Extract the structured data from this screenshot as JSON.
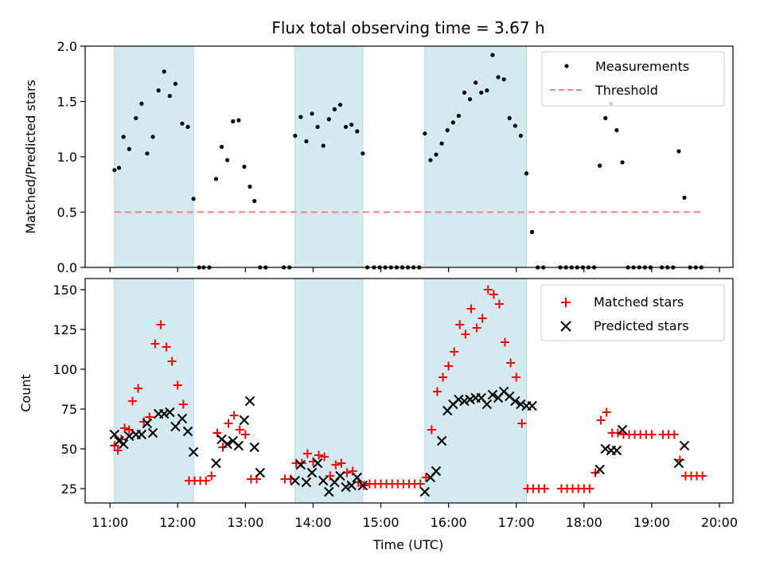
{
  "colors": {
    "band": "#d4eaf0",
    "band_edge": "#add8e6",
    "threshold": "#ff8080",
    "matched": "#ff0000",
    "predicted": "#000000",
    "measurement": "#000000"
  },
  "chart_data": [
    {
      "type": "scatter",
      "title": "Flux total observing time = 3.67 h",
      "xlabel": "",
      "ylabel": "Matched/Predicted stars",
      "xlim": [
        "10:38",
        "20:12"
      ],
      "ylim": [
        0,
        2.0
      ],
      "yticks": [
        0.0,
        0.5,
        1.0,
        1.5,
        2.0
      ],
      "ytick_labels": [
        "0.0",
        "0.5",
        "1.0",
        "1.5",
        "2.0"
      ],
      "grid": false,
      "legend_position": "top-right",
      "shaded_intervals": [
        [
          "11:04",
          "12:14"
        ],
        [
          "13:44",
          "14:44"
        ],
        [
          "15:39",
          "17:09"
        ]
      ],
      "series": [
        {
          "name": "Measurements",
          "marker": "dot",
          "x": [
            "11:04",
            "11:08",
            "11:12",
            "11:17",
            "11:23",
            "11:28",
            "11:33",
            "11:38",
            "11:43",
            "11:48",
            "11:53",
            "11:58",
            "12:04",
            "12:09",
            "12:14",
            "12:19",
            "12:23",
            "12:28",
            "12:34",
            "12:39",
            "12:44",
            "12:49",
            "12:54",
            "12:59",
            "13:04",
            "13:08",
            "13:13",
            "13:18",
            "13:34",
            "13:39",
            "13:44",
            "13:49",
            "13:54",
            "13:59",
            "14:04",
            "14:09",
            "14:14",
            "14:19",
            "14:24",
            "14:29",
            "14:34",
            "14:39",
            "14:44",
            "14:48",
            "14:54",
            "14:59",
            "15:04",
            "15:09",
            "15:14",
            "15:19",
            "15:24",
            "15:29",
            "15:34",
            "15:39",
            "15:44",
            "15:49",
            "15:54",
            "15:59",
            "16:04",
            "16:09",
            "16:14",
            "16:19",
            "16:24",
            "16:29",
            "16:34",
            "16:39",
            "16:44",
            "16:49",
            "16:54",
            "16:59",
            "17:04",
            "17:09",
            "17:14",
            "17:19",
            "17:24",
            "17:39",
            "17:44",
            "17:49",
            "17:54",
            "17:59",
            "18:04",
            "18:09",
            "18:14",
            "18:19",
            "18:24",
            "18:29",
            "18:34",
            "18:39",
            "18:44",
            "18:49",
            "18:54",
            "18:59",
            "19:09",
            "19:14",
            "19:19",
            "19:24",
            "19:29",
            "19:34",
            "19:39",
            "19:44"
          ],
          "y": [
            0.88,
            0.9,
            1.18,
            1.07,
            1.35,
            1.48,
            1.03,
            1.18,
            1.6,
            1.77,
            1.55,
            1.66,
            1.3,
            1.27,
            0.62,
            0.0,
            0.0,
            0.0,
            0.8,
            1.09,
            0.97,
            1.32,
            1.33,
            0.91,
            0.73,
            0.6,
            0.0,
            0.0,
            0.0,
            0.0,
            1.19,
            1.36,
            1.14,
            1.39,
            1.27,
            1.1,
            1.34,
            1.43,
            1.47,
            1.27,
            1.29,
            1.23,
            1.03,
            0.0,
            0.0,
            0.0,
            0.0,
            0.0,
            0.0,
            0.0,
            0.0,
            0.0,
            0.0,
            1.21,
            0.97,
            1.02,
            1.12,
            1.24,
            1.31,
            1.37,
            1.58,
            1.52,
            1.67,
            1.58,
            1.6,
            1.92,
            1.72,
            1.7,
            1.35,
            1.28,
            1.19,
            0.85,
            0.32,
            0.0,
            0.0,
            0.0,
            0.0,
            0.0,
            0.0,
            0.0,
            0.0,
            0.0,
            0.92,
            1.35,
            1.48,
            1.24,
            0.95,
            0.0,
            0.0,
            0.0,
            0.0,
            0.0,
            0.0,
            0.0,
            0.0,
            1.05,
            0.63,
            0.0,
            0.0,
            0.0
          ]
        },
        {
          "name": "Threshold",
          "style": "dashed",
          "x": [
            "11:04",
            "19:44"
          ],
          "y": [
            0.5,
            0.5
          ]
        }
      ]
    },
    {
      "type": "scatter",
      "title": "",
      "xlabel": "Time (UTC)",
      "ylabel": "Count",
      "xlim": [
        "10:38",
        "20:12"
      ],
      "ylim": [
        16,
        157
      ],
      "yticks": [
        25,
        50,
        75,
        100,
        125,
        150
      ],
      "ytick_labels": [
        "25",
        "50",
        "75",
        "100",
        "125",
        "150"
      ],
      "xticks": [
        "11:00",
        "12:00",
        "13:00",
        "14:00",
        "15:00",
        "16:00",
        "17:00",
        "18:00",
        "19:00",
        "20:00"
      ],
      "xtick_labels": [
        "11:00",
        "12:00",
        "13:00",
        "14:00",
        "15:00",
        "16:00",
        "17:00",
        "18:00",
        "19:00",
        "20:00"
      ],
      "grid": false,
      "legend_position": "top-right",
      "shaded_intervals": [
        [
          "11:04",
          "12:14"
        ],
        [
          "13:44",
          "14:44"
        ],
        [
          "15:39",
          "17:09"
        ]
      ],
      "series": [
        {
          "name": "Matched stars",
          "marker": "plus",
          "x": [
            "11:04",
            "11:07",
            "11:10",
            "11:13",
            "11:17",
            "11:20",
            "11:25",
            "11:30",
            "11:35",
            "11:40",
            "11:45",
            "11:50",
            "11:55",
            "12:00",
            "12:05",
            "12:10",
            "12:15",
            "12:20",
            "12:25",
            "12:30",
            "12:35",
            "12:40",
            "12:45",
            "12:50",
            "12:55",
            "13:00",
            "13:05",
            "13:10",
            "13:35",
            "13:40",
            "13:45",
            "13:50",
            "13:55",
            "14:00",
            "14:05",
            "14:10",
            "14:15",
            "14:20",
            "14:25",
            "14:30",
            "14:35",
            "14:40",
            "14:45",
            "14:50",
            "14:55",
            "15:00",
            "15:05",
            "15:10",
            "15:15",
            "15:20",
            "15:25",
            "15:30",
            "15:35",
            "15:40",
            "15:45",
            "15:50",
            "15:55",
            "16:00",
            "16:05",
            "16:10",
            "16:15",
            "16:20",
            "16:25",
            "16:30",
            "16:35",
            "16:40",
            "16:45",
            "16:50",
            "16:55",
            "17:00",
            "17:05",
            "17:10",
            "17:15",
            "17:20",
            "17:25",
            "17:40",
            "17:45",
            "17:50",
            "17:55",
            "18:00",
            "18:05",
            "18:10",
            "18:15",
            "18:20",
            "18:25",
            "18:30",
            "18:35",
            "18:40",
            "18:45",
            "18:50",
            "18:55",
            "19:00",
            "19:10",
            "19:15",
            "19:20",
            "19:25",
            "19:30",
            "19:35",
            "19:40",
            "19:45"
          ],
          "y": [
            52,
            49,
            56,
            63,
            62,
            80,
            88,
            67,
            70,
            116,
            128,
            114,
            105,
            90,
            78,
            30,
            30,
            30,
            30,
            33,
            60,
            51,
            66,
            71,
            62,
            59,
            31,
            31,
            31,
            31,
            41,
            41,
            47,
            42,
            46,
            45,
            33,
            40,
            41,
            35,
            36,
            29,
            27,
            28,
            28,
            28,
            28,
            28,
            28,
            28,
            28,
            28,
            28,
            32,
            62,
            86,
            95,
            102,
            111,
            128,
            122,
            138,
            126,
            132,
            150,
            147,
            141,
            117,
            104,
            95,
            66,
            25,
            25,
            25,
            25,
            25,
            25,
            25,
            25,
            25,
            25,
            35,
            68,
            73,
            60,
            60,
            59,
            59,
            59,
            59,
            59,
            59,
            59,
            59,
            59,
            43,
            33,
            33,
            33,
            33
          ]
        },
        {
          "name": "Predicted stars",
          "marker": "x",
          "x": [
            "11:04",
            "11:08",
            "11:12",
            "11:17",
            "11:23",
            "11:28",
            "11:33",
            "11:38",
            "11:43",
            "11:48",
            "11:53",
            "11:58",
            "12:04",
            "12:09",
            "12:14",
            "12:34",
            "12:39",
            "12:44",
            "12:49",
            "12:54",
            "12:59",
            "13:04",
            "13:08",
            "13:13",
            "13:44",
            "13:49",
            "13:54",
            "13:59",
            "14:04",
            "14:09",
            "14:14",
            "14:19",
            "14:24",
            "14:29",
            "14:34",
            "14:39",
            "14:44",
            "15:39",
            "15:44",
            "15:49",
            "15:54",
            "15:59",
            "16:04",
            "16:09",
            "16:14",
            "16:19",
            "16:24",
            "16:29",
            "16:34",
            "16:39",
            "16:44",
            "16:49",
            "16:54",
            "16:59",
            "17:04",
            "17:09",
            "17:14",
            "18:14",
            "18:19",
            "18:24",
            "18:29",
            "18:34",
            "19:24",
            "19:29"
          ],
          "y": [
            59,
            55,
            53,
            58,
            59,
            59,
            66,
            60,
            72,
            72,
            73,
            64,
            69,
            61,
            48,
            41,
            56,
            53,
            55,
            52,
            68,
            80,
            51,
            35,
            30,
            40,
            29,
            35,
            41,
            30,
            23,
            29,
            33,
            26,
            27,
            32,
            27,
            23,
            32,
            36,
            55,
            74,
            78,
            81,
            80,
            81,
            82,
            82,
            78,
            84,
            82,
            86,
            83,
            80,
            78,
            77,
            77,
            37,
            50,
            49,
            49,
            62,
            41,
            52
          ]
        }
      ]
    }
  ]
}
